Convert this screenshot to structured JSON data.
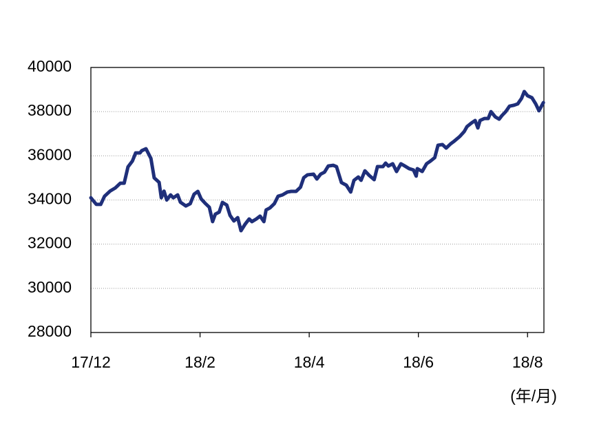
{
  "chart_data": {
    "type": "line",
    "x_unit_label": "(年/月)",
    "x": [
      0,
      0.1,
      0.18,
      0.25,
      0.35,
      0.45,
      0.54,
      0.61,
      0.68,
      0.76,
      0.82,
      0.9,
      0.93,
      1.01,
      1.1,
      1.16,
      1.25,
      1.29,
      1.34,
      1.39,
      1.46,
      1.51,
      1.59,
      1.64,
      1.74,
      1.82,
      1.89,
      1.96,
      2.02,
      2.09,
      2.17,
      2.23,
      2.28,
      2.35,
      2.41,
      2.49,
      2.55,
      2.62,
      2.69,
      2.75,
      2.83,
      2.9,
      2.95,
      3.03,
      3.1,
      3.17,
      3.21,
      3.28,
      3.36,
      3.43,
      3.51,
      3.6,
      3.67,
      3.76,
      3.84,
      3.9,
      3.97,
      4.08,
      4.14,
      4.21,
      4.28,
      4.35,
      4.44,
      4.5,
      4.59,
      4.68,
      4.76,
      4.82,
      4.9,
      4.95,
      5.02,
      5.1,
      5.19,
      5.25,
      5.35,
      5.4,
      5.45,
      5.53,
      5.6,
      5.68,
      5.75,
      5.83,
      5.91,
      5.96,
      5.98,
      6.07,
      6.15,
      6.22,
      6.3,
      6.36,
      6.44,
      6.51,
      6.59,
      6.66,
      6.76,
      6.84,
      6.89,
      6.97,
      7.04,
      7.09,
      7.13,
      7.21,
      7.28,
      7.33,
      7.41,
      7.48,
      7.53,
      7.6,
      7.67,
      7.75,
      7.82,
      7.89,
      7.94,
      8.0,
      8.08,
      8.15,
      8.21,
      8.29
    ],
    "values": [
      34100,
      33800,
      33800,
      34170,
      34400,
      34550,
      34760,
      34760,
      35500,
      35760,
      36130,
      36130,
      36230,
      36320,
      35880,
      35000,
      34800,
      34100,
      34400,
      34000,
      34230,
      34100,
      34230,
      33900,
      33730,
      33830,
      34260,
      34390,
      34050,
      33860,
      33670,
      33020,
      33360,
      33450,
      33890,
      33770,
      33300,
      33050,
      33200,
      32610,
      32920,
      33140,
      33020,
      33140,
      33270,
      33020,
      33550,
      33640,
      33830,
      34170,
      34230,
      34360,
      34390,
      34390,
      34580,
      35010,
      35140,
      35170,
      34950,
      35170,
      35260,
      35540,
      35570,
      35510,
      34790,
      34670,
      34360,
      34890,
      35040,
      34890,
      35320,
      35110,
      34920,
      35510,
      35510,
      35670,
      35540,
      35640,
      35290,
      35640,
      35540,
      35420,
      35360,
      35080,
      35420,
      35290,
      35640,
      35760,
      35920,
      36480,
      36510,
      36350,
      36540,
      36670,
      36880,
      37100,
      37320,
      37480,
      37600,
      37260,
      37600,
      37690,
      37690,
      38000,
      37760,
      37660,
      37820,
      38000,
      38250,
      38290,
      38350,
      38600,
      38910,
      38720,
      38630,
      38350,
      38040,
      38410
    ],
    "color": "#1f2f7a",
    "xlim": [
      0,
      8.3
    ],
    "xticks": [
      {
        "value": 0,
        "label": "17/12"
      },
      {
        "value": 2,
        "label": "18/2"
      },
      {
        "value": 4,
        "label": "18/4"
      },
      {
        "value": 6,
        "label": "18/6"
      },
      {
        "value": 8,
        "label": "18/8"
      }
    ],
    "ylim": [
      28000,
      40000
    ],
    "yticks": [
      28000,
      30000,
      32000,
      34000,
      36000,
      38000,
      40000
    ],
    "grid": true
  }
}
